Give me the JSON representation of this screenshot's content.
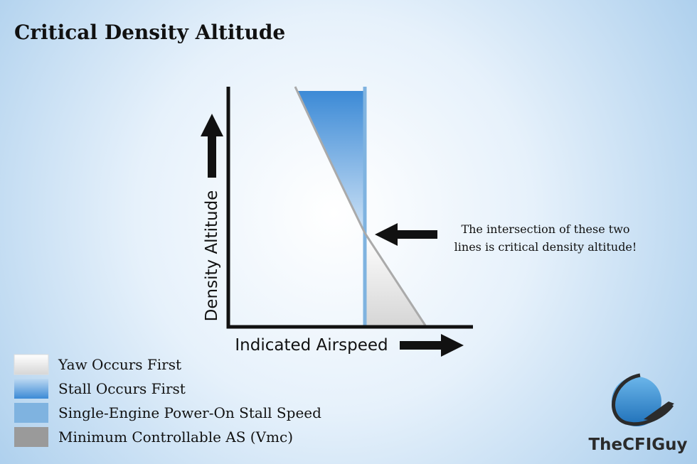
{
  "title": "Critical Density Altitude",
  "y_axis_label": "Density Altitude",
  "x_axis_label": "Indicated Airspeed",
  "annotation": [
    "The intersection of these two",
    "lines is critical density altitude!"
  ],
  "legend": [
    "Yaw Occurs First",
    "Stall Occurs First",
    "Single-Engine Power-On Stall Speed",
    "Minimum Controllable AS (Vmc)"
  ],
  "logo": "TheCFIGuy"
}
